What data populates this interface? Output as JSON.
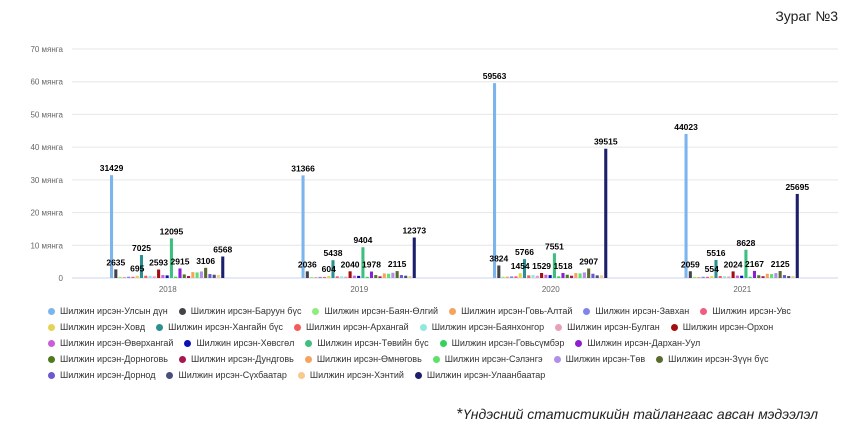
{
  "figure_label": "Зураг №3",
  "source_note": {
    "mark": "*",
    "text": "Үндэсний статистикийн тайлангаас авсан мэдээлэл"
  },
  "chart_data": {
    "type": "bar",
    "title": "",
    "xlabel": "",
    "ylabel": "",
    "ylim": [
      0,
      70000
    ],
    "y_ticks": [
      "0",
      "10 мянга",
      "20 мянга",
      "30 мянга",
      "40 мянга",
      "50 мянга",
      "60 мянга",
      "70 мянга"
    ],
    "grid": true,
    "legend_position": "bottom",
    "categories": [
      "2018",
      "2019",
      "2020",
      "2021"
    ],
    "series": [
      {
        "name": "Шилжин ирсэн-Улсын дүн",
        "color": "#7cb5ec",
        "values": [
          31429,
          31366,
          59563,
          44023
        ],
        "labels": [
          "31429",
          "31366",
          "59563",
          "44023"
        ]
      },
      {
        "name": "Шилжин ирсэн-Баруун бүс",
        "color": "#434348",
        "values": [
          2635,
          2036,
          3824,
          2059
        ],
        "labels": [
          "2635",
          "2036",
          "3824",
          "2059"
        ]
      },
      {
        "name": "Шилжин ирсэн-Баян-Өлгий",
        "color": "#90ed7d",
        "values": [
          350,
          300,
          400,
          350
        ],
        "labels": [
          "",
          "",
          "",
          ""
        ]
      },
      {
        "name": "Шилжин ирсэн-Говь-Алтай",
        "color": "#f7a35c",
        "values": [
          300,
          280,
          420,
          300
        ],
        "labels": [
          "",
          "",
          "",
          ""
        ]
      },
      {
        "name": "Шилжин ирсэн-Завхан",
        "color": "#8085e9",
        "values": [
          400,
          350,
          500,
          380
        ],
        "labels": [
          "",
          "",
          "",
          ""
        ]
      },
      {
        "name": "Шилжин ирсэн-Увс",
        "color": "#f15c80",
        "values": [
          380,
          330,
          520,
          360
        ],
        "labels": [
          "",
          "",
          "",
          ""
        ]
      },
      {
        "name": "Шилжин ирсэн-Ховд",
        "color": "#e4d354",
        "values": [
          695,
          604,
          1454,
          554
        ],
        "labels": [
          "695",
          "604",
          "1454",
          "554"
        ]
      },
      {
        "name": "Шилжин ирсэн-Хангайн бүс",
        "color": "#2b908f",
        "values": [
          7025,
          5438,
          5766,
          5516
        ],
        "labels": [
          "7025",
          "5438",
          "5766",
          "5516"
        ]
      },
      {
        "name": "Шилжин ирсэн-Архангай",
        "color": "#f45b5b",
        "values": [
          700,
          500,
          800,
          600
        ],
        "labels": [
          "",
          "",
          "",
          ""
        ]
      },
      {
        "name": "Шилжин ирсэн-Баянхонгор",
        "color": "#91e8e1",
        "values": [
          650,
          500,
          900,
          550
        ],
        "labels": [
          "",
          "",
          "",
          ""
        ]
      },
      {
        "name": "Шилжин ирсэн-Булган",
        "color": "#e7a0b8",
        "values": [
          500,
          400,
          700,
          450
        ],
        "labels": [
          "",
          "",
          "",
          ""
        ]
      },
      {
        "name": "Шилжин ирсэн-Орхон",
        "color": "#a30f0f",
        "values": [
          2593,
          2040,
          1529,
          2024
        ],
        "labels": [
          "2593",
          "2040",
          "1529",
          "2024"
        ]
      },
      {
        "name": "Шилжин ирсэн-Өвөрхангай",
        "color": "#c95fd6",
        "values": [
          900,
          700,
          1000,
          750
        ],
        "labels": [
          "",
          "",
          "",
          ""
        ]
      },
      {
        "name": "Шилжин ирсэн-Хөвсгөл",
        "color": "#0d10b5",
        "values": [
          800,
          650,
          900,
          700
        ],
        "labels": [
          "",
          "",
          "",
          ""
        ]
      },
      {
        "name": "Шилжин ирсэн-Төвийн бүс",
        "color": "#3fbf7f",
        "values": [
          12095,
          9404,
          7551,
          8628
        ],
        "labels": [
          "12095",
          "9404",
          "7551",
          "8628"
        ]
      },
      {
        "name": "Шилжин ирсэн-Говьсүмбэр",
        "color": "#33d25a",
        "values": [
          400,
          350,
          500,
          380
        ],
        "labels": [
          "",
          "",
          "",
          ""
        ]
      },
      {
        "name": "Шилжин ирсэн-Дархан-Уул",
        "color": "#8b1fd1",
        "values": [
          2915,
          1978,
          1518,
          2167
        ],
        "labels": [
          "2915",
          "1978",
          "1518",
          "2167"
        ]
      },
      {
        "name": "Шилжин ирсэн-Дорноговь",
        "color": "#4e7a1d",
        "values": [
          1100,
          900,
          1000,
          850
        ],
        "labels": [
          "",
          "",
          "",
          ""
        ]
      },
      {
        "name": "Шилжин ирсэн-Дундговь",
        "color": "#a6174e",
        "values": [
          600,
          500,
          700,
          550
        ],
        "labels": [
          "",
          "",
          "",
          ""
        ]
      },
      {
        "name": "Шилжин ирсэн-Өмнөговь",
        "color": "#f5a45f",
        "values": [
          1800,
          1400,
          1500,
          1300
        ],
        "labels": [
          "",
          "",
          "",
          ""
        ]
      },
      {
        "name": "Шилжин ирсэн-Сэлэнгэ",
        "color": "#5ee06a",
        "values": [
          1700,
          1300,
          1400,
          1200
        ],
        "labels": [
          "",
          "",
          "",
          ""
        ]
      },
      {
        "name": "Шилжин ирсэн-Төв",
        "color": "#b08fe8",
        "values": [
          2000,
          1600,
          1700,
          1500
        ],
        "labels": [
          "",
          "",
          "",
          ""
        ]
      },
      {
        "name": "Шилжин ирсэн-Зүүн бүс",
        "color": "#5a6b2e",
        "values": [
          3106,
          2115,
          2907,
          2125
        ],
        "labels": [
          "3106",
          "2115",
          "2907",
          "2125"
        ]
      },
      {
        "name": "Шилжин ирсэн-Дорнод",
        "color": "#6a5acd",
        "values": [
          1200,
          900,
          1300,
          900
        ],
        "labels": [
          "",
          "",
          "",
          ""
        ]
      },
      {
        "name": "Шилжин ирсэн-Сүхбаатар",
        "color": "#4a4f7a",
        "values": [
          1000,
          700,
          800,
          600
        ],
        "labels": [
          "",
          "",
          "",
          ""
        ]
      },
      {
        "name": "Шилжин ирсэн-Хэнтий",
        "color": "#f7c98a",
        "values": [
          900,
          600,
          800,
          600
        ],
        "labels": [
          "",
          "",
          "",
          ""
        ]
      },
      {
        "name": "Шилжин ирсэн-Улаанбаатар",
        "color": "#1c1f6b",
        "values": [
          6568,
          12373,
          39515,
          25695
        ],
        "labels": [
          "6568",
          "12373",
          "39515",
          "25695"
        ]
      }
    ]
  }
}
